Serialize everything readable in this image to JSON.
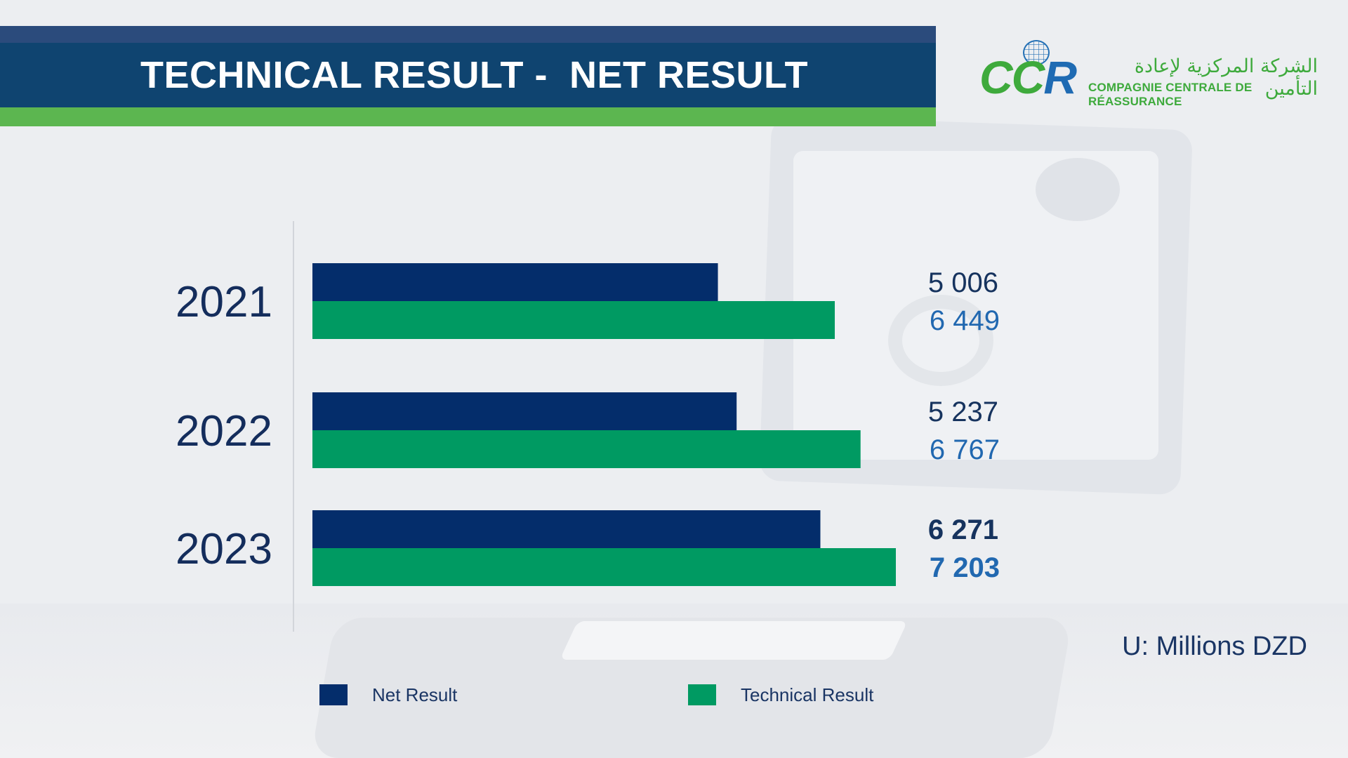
{
  "header": {
    "title": "TECHNICAL RESULT -  NET RESULT"
  },
  "logo": {
    "mark_cc": "CC",
    "mark_r": "R",
    "arabic_name": "الشركة المركزية لإعادة التأمين",
    "french_name": "COMPAGNIE CENTRALE DE RÉASSURANCE"
  },
  "unit_label": "U: Millions DZD",
  "colors": {
    "net_result": "#042d6b",
    "technical_result": "#009a62",
    "banner": "#0f4470",
    "banner_accent": "#5cb650"
  },
  "chart_data": {
    "type": "bar",
    "orientation": "horizontal",
    "categories": [
      "2021",
      "2022",
      "2023"
    ],
    "series": [
      {
        "name": "Net Result",
        "values": [
          5006,
          5237,
          6271
        ],
        "value_labels": [
          "5 006",
          "5 237",
          "6 271"
        ]
      },
      {
        "name": "Technical Result",
        "values": [
          6449,
          6767,
          7203
        ],
        "value_labels": [
          "6 449",
          "6 767",
          "7 203"
        ]
      }
    ],
    "xlim": [
      0,
      7203
    ],
    "grid": false,
    "legend": "bottom",
    "highlight_category": "2023"
  }
}
